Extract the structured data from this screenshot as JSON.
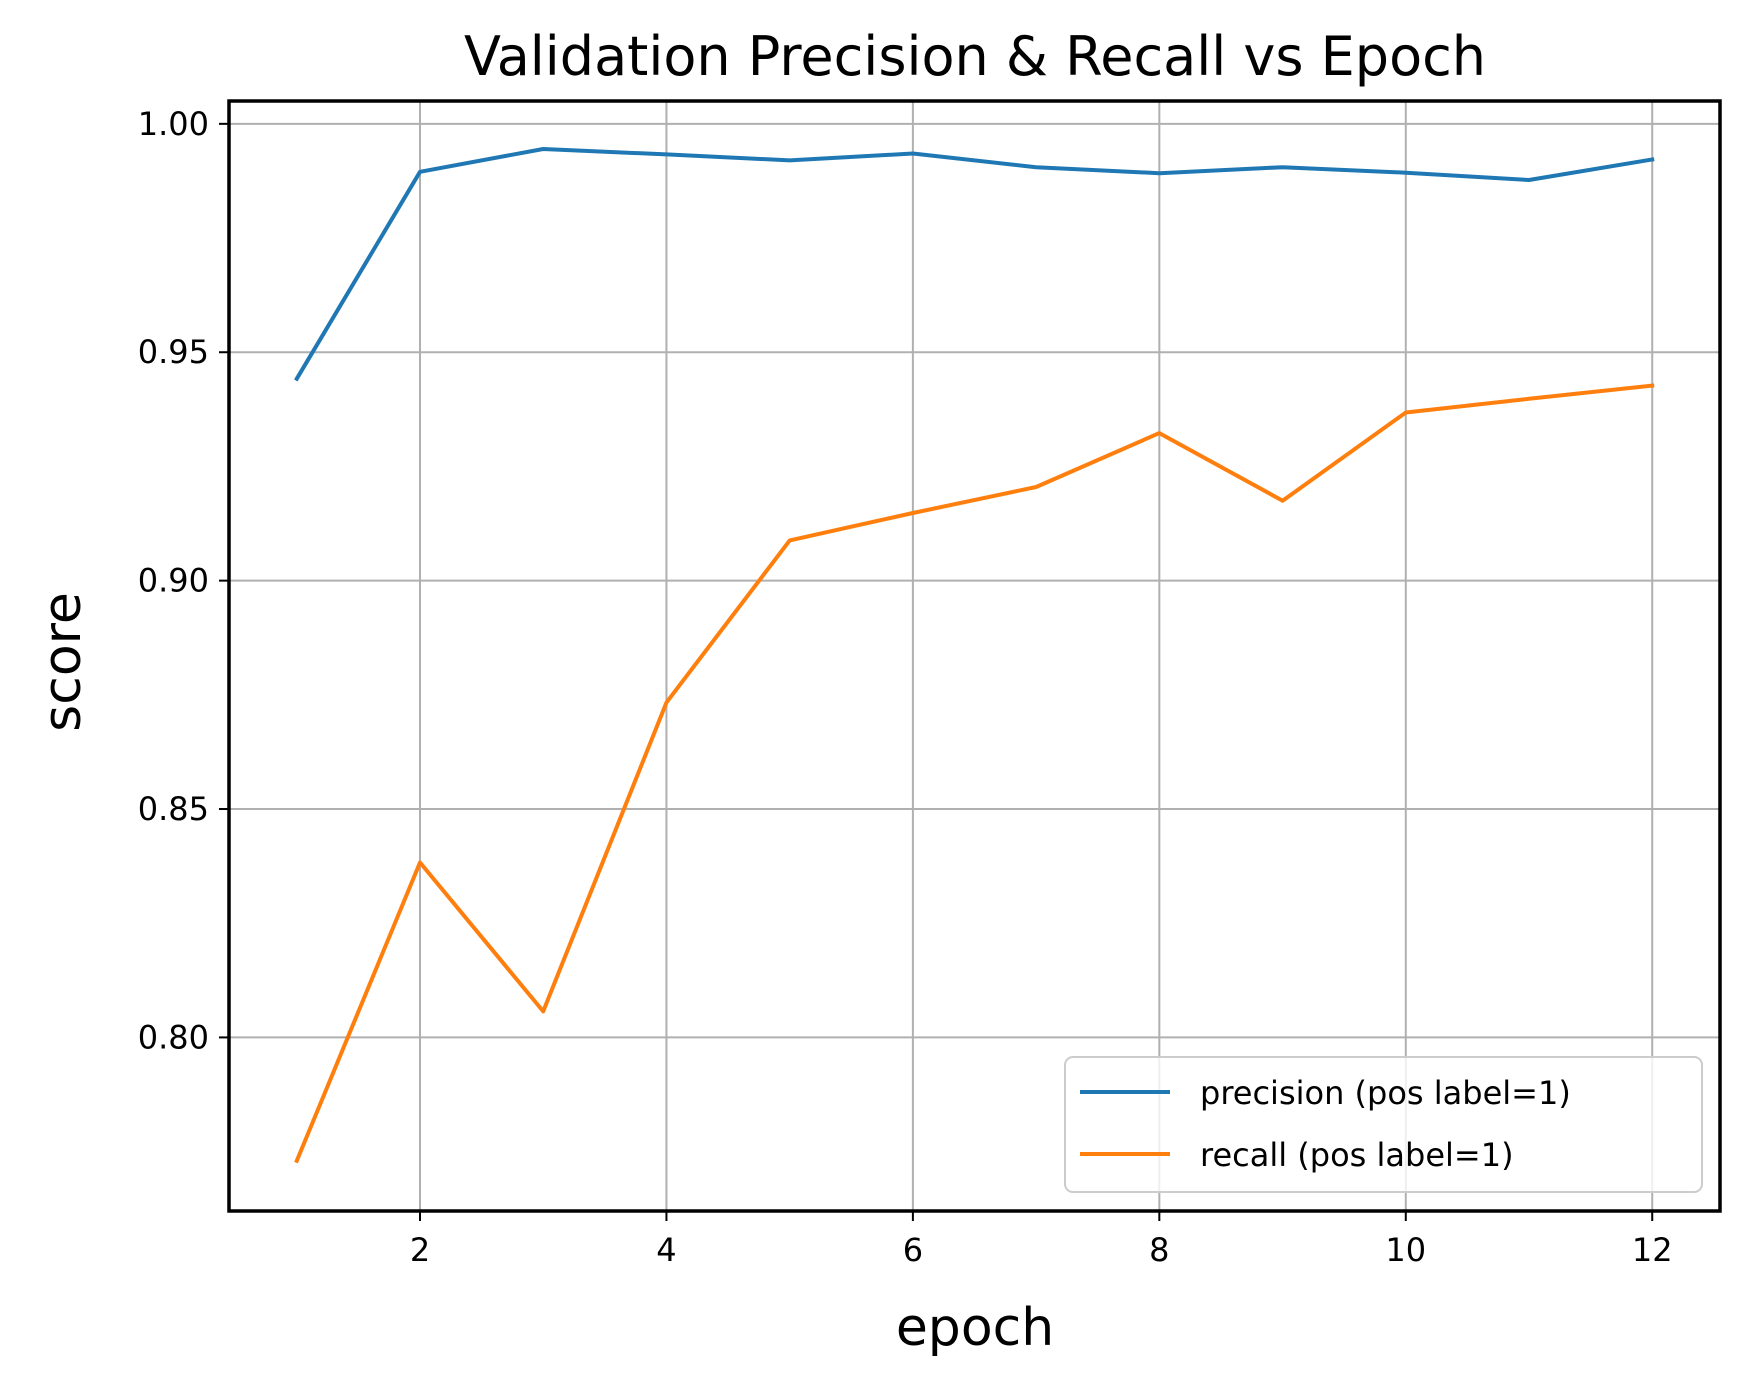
{
  "chart_data": {
    "type": "line",
    "title": "Validation Precision & Recall vs Epoch",
    "xlabel": "epoch",
    "ylabel": "score",
    "x": [
      1,
      2,
      3,
      4,
      5,
      6,
      7,
      8,
      9,
      10,
      11,
      12
    ],
    "xlim": [
      0.45,
      12.55
    ],
    "ylim": [
      0.762,
      1.005
    ],
    "xticks": [
      2,
      4,
      6,
      8,
      10,
      12
    ],
    "yticks": [
      0.8,
      0.85,
      0.9,
      0.95,
      1.0
    ],
    "ytick_labels": [
      "0.80",
      "0.85",
      "0.90",
      "0.95",
      "1.00"
    ],
    "grid": true,
    "legend_position": "lower-right",
    "series": [
      {
        "name": "precision (pos label=1)",
        "color": "#1f77b4",
        "values": [
          0.9442,
          0.9895,
          0.9945,
          0.9933,
          0.992,
          0.9935,
          0.9905,
          0.9892,
          0.9905,
          0.9893,
          0.9877,
          0.9922
        ]
      },
      {
        "name": "recall (pos label=1)",
        "color": "#ff7f0e",
        "values": [
          0.773,
          0.8383,
          0.8057,
          0.8733,
          0.9088,
          0.9148,
          0.9205,
          0.9323,
          0.9175,
          0.9368,
          0.9398,
          0.9427
        ]
      }
    ]
  }
}
